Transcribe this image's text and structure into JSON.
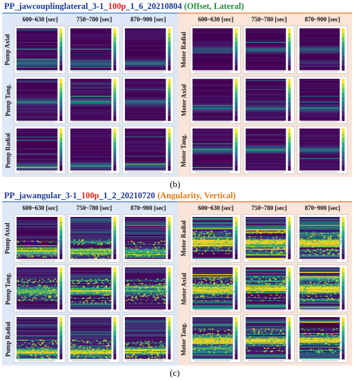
{
  "figure_b": {
    "title_parts": [
      {
        "text": "PP_jawcouplinglateral_3-1_",
        "color": "#1f3a93"
      },
      {
        "text": "100p",
        "color": "#e0201a"
      },
      {
        "text": "_1_6_20210804 ",
        "color": "#1f3a93"
      },
      {
        "text": "(Offset, Lateral)",
        "color": "#1f8f3a"
      }
    ],
    "label": "(b)",
    "groups": [
      {
        "theme": "blue",
        "columns": [
          "600~630 [sec]",
          "750~780 [sec]",
          "870~900 [sec]"
        ],
        "rows": [
          {
            "label": "Pump Axial",
            "intensity": 0.15,
            "band": 0.82
          },
          {
            "label": "Pump Tang.",
            "intensity": 0.18,
            "band": 0.55
          },
          {
            "label": "Pump Radial",
            "intensity": 0.15,
            "band": 0.88
          }
        ]
      },
      {
        "theme": "orange",
        "columns": [
          "600~630 [sec]",
          "750~780 [sec]",
          "870~900 [sec]"
        ],
        "rows": [
          {
            "label": "Motor Radial",
            "intensity": 0.12,
            "band": 0.5
          },
          {
            "label": "Motor Axial",
            "intensity": 0.14,
            "band": 0.7
          },
          {
            "label": "Motor Tang.",
            "intensity": 0.2,
            "band": 0.5
          }
        ]
      }
    ]
  },
  "figure_c": {
    "title_parts": [
      {
        "text": "PP_jawangular_3-1_",
        "color": "#1f3a93"
      },
      {
        "text": "100p",
        "color": "#e0201a"
      },
      {
        "text": "_1_2_20210720 ",
        "color": "#1f3a93"
      },
      {
        "text": "(Angularity, Vertical)",
        "color": "#e07a1a"
      }
    ],
    "label": "(c)",
    "groups": [
      {
        "theme": "blue",
        "columns": [
          "600~630 [sec]",
          "750~780 [sec]",
          "870~900 [sec]"
        ],
        "rows": [
          {
            "label": "Pump Axial",
            "intensity": 0.45,
            "band": 0.82
          },
          {
            "label": "Pump Tang.",
            "intensity": 0.4,
            "band": 0.55
          },
          {
            "label": "Pump Radial",
            "intensity": 0.5,
            "band": 0.82
          }
        ]
      },
      {
        "theme": "orange",
        "columns": [
          "600~630 [sec]",
          "750~780 [sec]",
          "870~900 [sec]"
        ],
        "rows": [
          {
            "label": "Motor Radial",
            "intensity": 0.7,
            "band": 0.6
          },
          {
            "label": "Motor Axial",
            "intensity": 0.75,
            "band": 0.5
          },
          {
            "label": "Motor Tang.",
            "intensity": 0.7,
            "band": 0.55
          }
        ]
      }
    ]
  },
  "colors": {
    "viridis_dark": "#440154",
    "viridis_blue": "#31688e",
    "viridis_teal": "#35b779",
    "viridis_yellow": "#fde725"
  }
}
